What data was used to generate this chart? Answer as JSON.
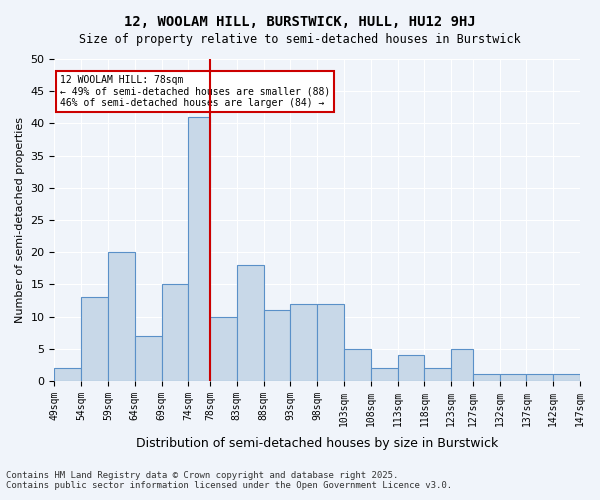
{
  "title1": "12, WOOLAM HILL, BURSTWICK, HULL, HU12 9HJ",
  "title2": "Size of property relative to semi-detached houses in Burstwick",
  "xlabel": "Distribution of semi-detached houses by size in Burstwick",
  "ylabel": "Number of semi-detached properties",
  "bins": [
    49,
    54,
    59,
    64,
    69,
    74,
    78,
    83,
    88,
    93,
    98,
    103,
    108,
    113,
    118,
    123,
    127,
    132,
    137,
    142,
    147
  ],
  "bin_labels": [
    "49sqm",
    "54sqm",
    "59sqm",
    "64sqm",
    "69sqm",
    "74sqm",
    "78sqm",
    "83sqm",
    "88sqm",
    "93sqm",
    "98sqm",
    "103sqm",
    "108sqm",
    "113sqm",
    "118sqm",
    "123sqm",
    "127sqm",
    "132sqm",
    "137sqm",
    "142sqm",
    "147sqm"
  ],
  "values": [
    2,
    13,
    20,
    7,
    15,
    41,
    10,
    18,
    11,
    12,
    12,
    5,
    2,
    4,
    2,
    5,
    1,
    1,
    1,
    1
  ],
  "bar_color": "#c8d8e8",
  "bar_edge_color": "#5a90c8",
  "property_value": 78,
  "property_label": "12 WOOLAM HILL: 78sqm",
  "annotation_line1": "← 49% of semi-detached houses are smaller (88)",
  "annotation_line2": "46% of semi-detached houses are larger (84) →",
  "red_line_color": "#cc0000",
  "annotation_box_color": "#ffffff",
  "annotation_box_edge_color": "#cc0000",
  "ylim": [
    0,
    50
  ],
  "yticks": [
    0,
    5,
    10,
    15,
    20,
    25,
    30,
    35,
    40,
    45,
    50
  ],
  "bg_color": "#f0f4fa",
  "footer1": "Contains HM Land Registry data © Crown copyright and database right 2025.",
  "footer2": "Contains public sector information licensed under the Open Government Licence v3.0."
}
